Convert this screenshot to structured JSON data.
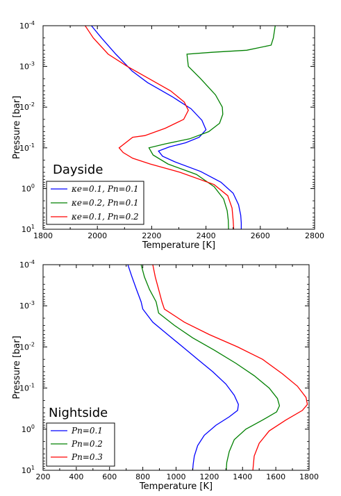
{
  "chart_data": [
    {
      "type": "line",
      "title": "Dayside",
      "xlabel": "Temperature [K]",
      "ylabel": "Pressure [bar]",
      "xlim": [
        1800,
        2800
      ],
      "ylim": [
        0.0001,
        10
      ],
      "yscale": "log",
      "yinverted": true,
      "xticks": [
        "1800",
        "2000",
        "2200",
        "2400",
        "2600",
        "2800"
      ],
      "ytick_exps": [
        "-4",
        "-3",
        "-2",
        "-1",
        "0",
        "1"
      ],
      "legend_position": "lower-left",
      "grid": false,
      "series": [
        {
          "name": "κe=0.1, Pn=0.1",
          "color": "#0000ff",
          "x": [
            1978,
            2015,
            2068,
            2105,
            2128,
            2185,
            2275,
            2345,
            2385,
            2400,
            2375,
            2325,
            2265,
            2225,
            2240,
            2285,
            2380,
            2455,
            2500,
            2520,
            2528,
            2530,
            2530
          ],
          "y": [
            0.0001,
            0.0002,
            0.0005,
            0.0009,
            0.0013,
            0.0025,
            0.0055,
            0.011,
            0.021,
            0.036,
            0.055,
            0.075,
            0.095,
            0.12,
            0.16,
            0.22,
            0.38,
            0.7,
            1.3,
            2.5,
            4.5,
            7,
            10
          ]
        },
        {
          "name": "κe=0.2, Pn=0.1",
          "color": "#008000",
          "x": [
            2655,
            2648,
            2640,
            2550,
            2420,
            2330,
            2335,
            2380,
            2435,
            2460,
            2462,
            2450,
            2410,
            2340,
            2250,
            2190,
            2205,
            2260,
            2365,
            2430,
            2465,
            2478,
            2482,
            2483
          ],
          "y": [
            0.0001,
            0.0002,
            0.0003,
            0.0004,
            0.00045,
            0.0005,
            0.001,
            0.002,
            0.005,
            0.01,
            0.015,
            0.025,
            0.04,
            0.06,
            0.08,
            0.1,
            0.15,
            0.25,
            0.45,
            0.9,
            1.8,
            3.5,
            6,
            10
          ]
        },
        {
          "name": "κe=0.1, Pn=0.2",
          "color": "#ff0000",
          "x": [
            1955,
            1985,
            2040,
            2110,
            2190,
            2270,
            2320,
            2335,
            2318,
            2250,
            2175,
            2130,
            2080,
            2095,
            2130,
            2195,
            2305,
            2430,
            2480,
            2496,
            2500,
            2502
          ],
          "y": [
            0.0001,
            0.0002,
            0.0005,
            0.001,
            0.002,
            0.004,
            0.0075,
            0.012,
            0.02,
            0.033,
            0.05,
            0.055,
            0.1,
            0.13,
            0.18,
            0.25,
            0.4,
            0.8,
            1.5,
            3,
            6,
            10
          ]
        }
      ]
    },
    {
      "type": "line",
      "title": "Nightside",
      "xlabel": "Temperature [K]",
      "ylabel": "Pressure [bar]",
      "xlim": [
        200,
        1800
      ],
      "ylim": [
        0.0001,
        10
      ],
      "yscale": "log",
      "yinverted": true,
      "xticks": [
        "200",
        "400",
        "600",
        "800",
        "1000",
        "1200",
        "1400",
        "1600",
        "1800"
      ],
      "ytick_exps": [
        "-4",
        "-3",
        "-2",
        "-1",
        "0",
        "1"
      ],
      "legend_position": "lower-left",
      "grid": false,
      "series": [
        {
          "name": "Pn=0.1",
          "color": "#0000ff",
          "x": [
            710,
            735,
            762,
            790,
            800,
            860,
            950,
            1040,
            1130,
            1220,
            1300,
            1350,
            1375,
            1370,
            1320,
            1240,
            1170,
            1130,
            1110,
            1103,
            1100
          ],
          "y": [
            0.0001,
            0.0002,
            0.0004,
            0.0008,
            0.0012,
            0.0025,
            0.005,
            0.01,
            0.02,
            0.04,
            0.08,
            0.15,
            0.25,
            0.35,
            0.5,
            0.8,
            1.4,
            2.5,
            4.5,
            7,
            10
          ]
        },
        {
          "name": "Pn=0.2",
          "color": "#008000",
          "x": [
            790,
            810,
            840,
            880,
            895,
            990,
            1100,
            1230,
            1360,
            1470,
            1560,
            1610,
            1622,
            1605,
            1520,
            1420,
            1350,
            1320,
            1305,
            1302
          ],
          "y": [
            0.0001,
            0.0002,
            0.0004,
            0.0008,
            0.0015,
            0.003,
            0.006,
            0.012,
            0.025,
            0.05,
            0.1,
            0.18,
            0.27,
            0.38,
            0.6,
            1.0,
            1.8,
            3.5,
            6.5,
            10
          ]
        },
        {
          "name": "Pn=0.3",
          "color": "#ff0000",
          "x": [
            860,
            875,
            895,
            915,
            930,
            1050,
            1200,
            1370,
            1520,
            1640,
            1730,
            1782,
            1790,
            1760,
            1660,
            1560,
            1500,
            1470,
            1462
          ],
          "y": [
            0.0001,
            0.0002,
            0.0004,
            0.0008,
            0.0012,
            0.0025,
            0.005,
            0.01,
            0.02,
            0.045,
            0.09,
            0.17,
            0.25,
            0.35,
            0.6,
            1.1,
            2.2,
            4.5,
            10
          ]
        }
      ]
    }
  ]
}
